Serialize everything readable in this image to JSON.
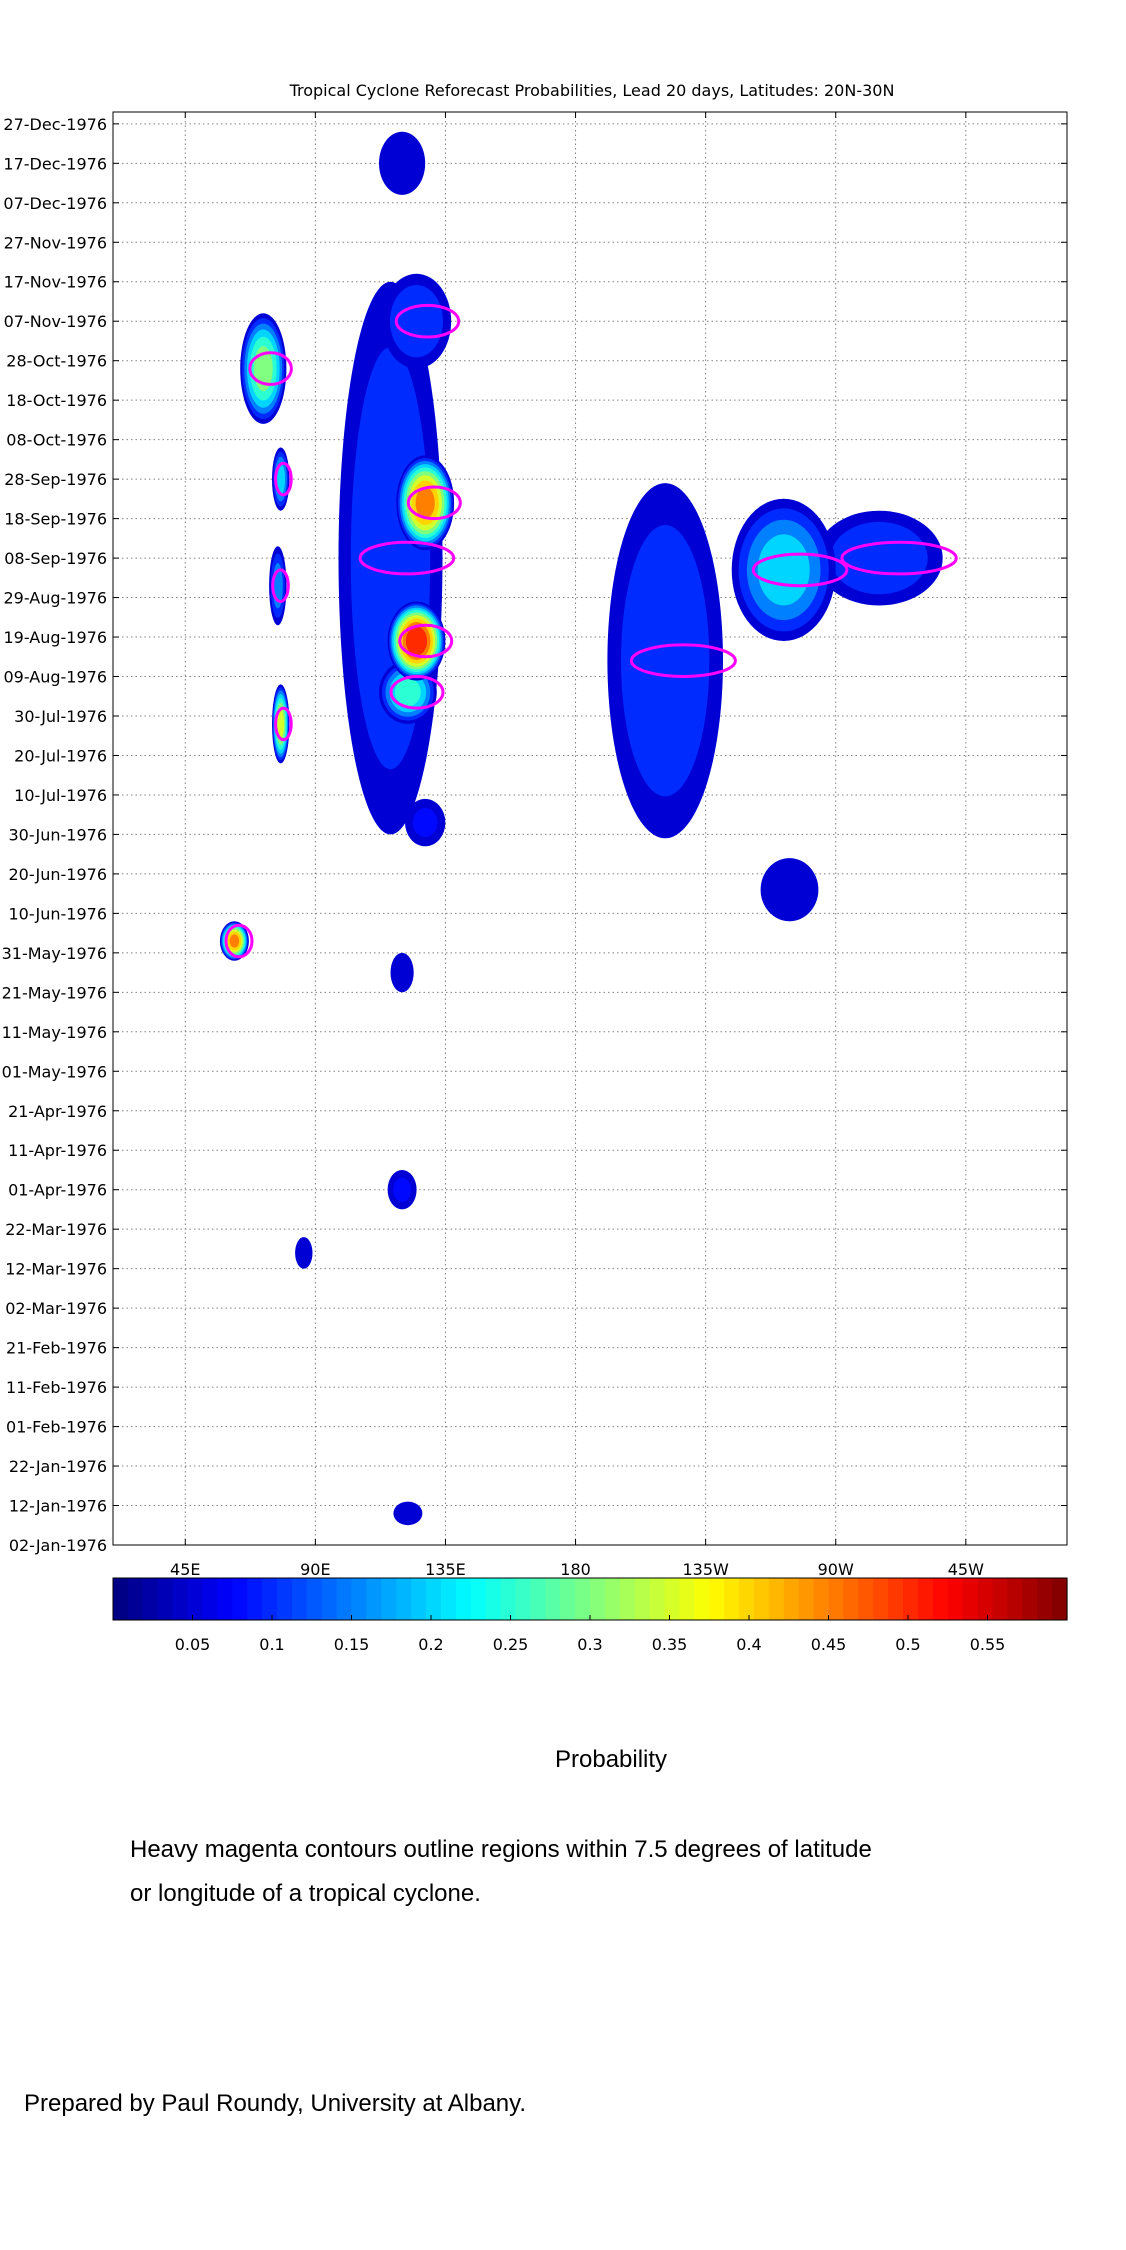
{
  "chart_data": {
    "type": "heatmap",
    "title": "Tropical Cyclone Reforecast Probabilities, Lead 20 days, Latitudes: 20N-30N",
    "xlabel": "",
    "ylabel": "",
    "x_ticks": [
      "45E",
      "90E",
      "135E",
      "180",
      "135W",
      "90W",
      "45W"
    ],
    "x_tick_values": [
      45,
      90,
      135,
      180,
      225,
      270,
      315
    ],
    "xlim": [
      20,
      350
    ],
    "y_ticks": [
      "02-Jan-1976",
      "12-Jan-1976",
      "22-Jan-1976",
      "01-Feb-1976",
      "11-Feb-1976",
      "21-Feb-1976",
      "02-Mar-1976",
      "12-Mar-1976",
      "22-Mar-1976",
      "01-Apr-1976",
      "11-Apr-1976",
      "21-Apr-1976",
      "01-May-1976",
      "11-May-1976",
      "21-May-1976",
      "31-May-1976",
      "10-Jun-1976",
      "20-Jun-1976",
      "30-Jun-1976",
      "10-Jul-1976",
      "20-Jul-1976",
      "30-Jul-1976",
      "09-Aug-1976",
      "19-Aug-1976",
      "29-Aug-1976",
      "08-Sep-1976",
      "18-Sep-1976",
      "28-Sep-1976",
      "08-Oct-1976",
      "18-Oct-1976",
      "28-Oct-1976",
      "07-Nov-1976",
      "17-Nov-1976",
      "27-Nov-1976",
      "07-Dec-1976",
      "17-Dec-1976",
      "27-Dec-1976"
    ],
    "ylim": [
      "02-Jan-1976",
      "30-Dec-1976"
    ],
    "grid": true,
    "colorbar": {
      "label": "Probability",
      "range": [
        0,
        0.6
      ],
      "ticks": [
        "0.05",
        "0.1",
        "0.15",
        "0.2",
        "0.25",
        "0.3",
        "0.35",
        "0.4",
        "0.45",
        "0.5",
        "0.55"
      ],
      "tick_values": [
        0.05,
        0.1,
        0.15,
        0.2,
        0.25,
        0.3,
        0.35,
        0.4,
        0.45,
        0.5,
        0.55
      ]
    },
    "colors": {
      "contour": "#ff00ff",
      "grid": "#808080",
      "fill_min": "#00008f",
      "fill_max": "#800000"
    },
    "blobs": [
      {
        "lon": 116,
        "lat_date": "08-Sep-1976",
        "lon_halfwidth": 18,
        "days_halfwidth": 70,
        "peak": 0.12
      },
      {
        "lon": 128,
        "lat_date": "22-Sep-1976",
        "lon_halfwidth": 10,
        "days_halfwidth": 12,
        "peak": 0.45
      },
      {
        "lon": 125,
        "lat_date": "18-Aug-1976",
        "lon_halfwidth": 10,
        "days_halfwidth": 10,
        "peak": 0.52
      },
      {
        "lon": 122,
        "lat_date": "05-Aug-1976",
        "lon_halfwidth": 10,
        "days_halfwidth": 8,
        "peak": 0.25
      },
      {
        "lon": 125,
        "lat_date": "07-Nov-1976",
        "lon_halfwidth": 12,
        "days_halfwidth": 12,
        "peak": 0.12
      },
      {
        "lon": 120,
        "lat_date": "17-Dec-1976",
        "lon_halfwidth": 8,
        "days_halfwidth": 8,
        "peak": 0.06
      },
      {
        "lon": 72,
        "lat_date": "26-Oct-1976",
        "lon_halfwidth": 8,
        "days_halfwidth": 14,
        "peak": 0.3
      },
      {
        "lon": 78,
        "lat_date": "28-Sep-1976",
        "lon_halfwidth": 3,
        "days_halfwidth": 8,
        "peak": 0.2
      },
      {
        "lon": 77,
        "lat_date": "01-Sep-1976",
        "lon_halfwidth": 3,
        "days_halfwidth": 10,
        "peak": 0.15
      },
      {
        "lon": 78,
        "lat_date": "28-Jul-1976",
        "lon_halfwidth": 3,
        "days_halfwidth": 10,
        "peak": 0.35
      },
      {
        "lon": 62,
        "lat_date": "03-Jun-1976",
        "lon_halfwidth": 5,
        "days_halfwidth": 5,
        "peak": 0.45
      },
      {
        "lon": 211,
        "lat_date": "13-Aug-1976",
        "lon_halfwidth": 20,
        "days_halfwidth": 45,
        "peak": 0.12
      },
      {
        "lon": 252,
        "lat_date": "05-Sep-1976",
        "lon_halfwidth": 18,
        "days_halfwidth": 18,
        "peak": 0.2
      },
      {
        "lon": 285,
        "lat_date": "08-Sep-1976",
        "lon_halfwidth": 22,
        "days_halfwidth": 12,
        "peak": 0.12
      },
      {
        "lon": 254,
        "lat_date": "16-Jun-1976",
        "lon_halfwidth": 10,
        "days_halfwidth": 8,
        "peak": 0.07
      },
      {
        "lon": 128,
        "lat_date": "03-Jul-1976",
        "lon_halfwidth": 7,
        "days_halfwidth": 6,
        "peak": 0.08
      },
      {
        "lon": 120,
        "lat_date": "26-May-1976",
        "lon_halfwidth": 4,
        "days_halfwidth": 5,
        "peak": 0.06
      },
      {
        "lon": 120,
        "lat_date": "01-Apr-1976",
        "lon_halfwidth": 5,
        "days_halfwidth": 5,
        "peak": 0.08
      },
      {
        "lon": 86,
        "lat_date": "16-Mar-1976",
        "lon_halfwidth": 3,
        "days_halfwidth": 4,
        "peak": 0.06
      },
      {
        "lon": 122,
        "lat_date": "10-Jan-1976",
        "lon_halfwidth": 5,
        "days_halfwidth": 3,
        "peak": 0.06
      }
    ]
  },
  "colorbar_label": "Probability",
  "caption_line1": "Heavy magenta contours outline regions within 7.5 degrees of latitude",
  "caption_line2": "or longitude of a tropical cyclone.",
  "credit": "Prepared by Paul Roundy, University at Albany."
}
